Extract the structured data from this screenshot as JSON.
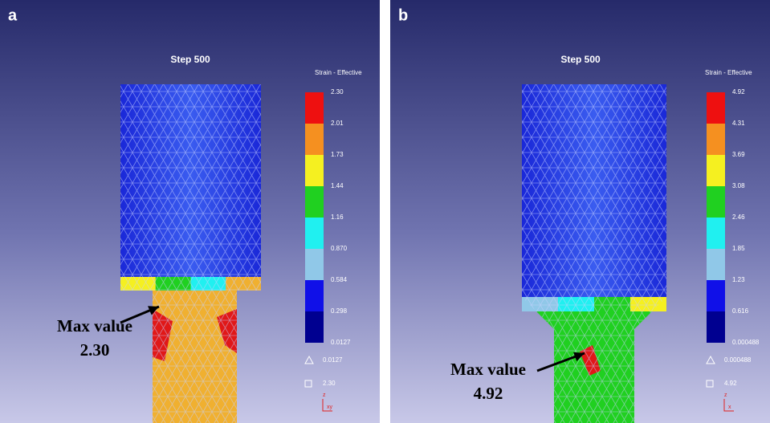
{
  "panels": [
    {
      "label": "a",
      "step": "Step 500",
      "legend_title": "Strain - Effective",
      "legend_values": [
        "2.30",
        "2.01",
        "1.73",
        "1.44",
        "1.16",
        "0.870",
        "0.584",
        "0.298",
        "0.0127"
      ],
      "min_marker": "0.0127",
      "max_marker": "2.30",
      "axis_up": "z",
      "axis_right": "xy",
      "annotation": "Max value",
      "annotation_value": "2.30"
    },
    {
      "label": "b",
      "step": "Step 500",
      "legend_title": "Strain - Effective",
      "legend_values": [
        "4.92",
        "4.31",
        "3.69",
        "3.08",
        "2.46",
        "1.85",
        "1.23",
        "0.616",
        "0.000488"
      ],
      "min_marker": "0.000488",
      "max_marker": "4.92",
      "axis_up": "z",
      "axis_right": "x",
      "annotation": "Max value",
      "annotation_value": "4.92"
    }
  ]
}
